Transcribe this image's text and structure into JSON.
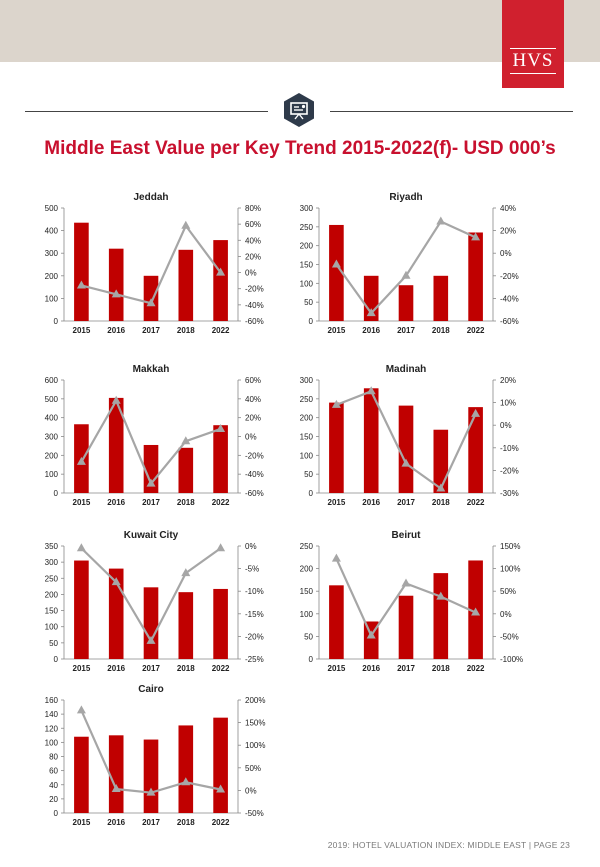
{
  "report": {
    "brand": "HVS",
    "title": "Middle East Value per Key Trend 2015-2022(f)- USD 000’s",
    "footer": "2019: HOTEL VALUATION INDEX: MIDDLE EAST | PAGE 23"
  },
  "colors": {
    "bar": "#c00000",
    "line": "#a6a6a6",
    "title": "#c8102e",
    "accent_band": "#dcd5cc"
  },
  "chart_data": [
    {
      "type": "bar+line",
      "title": "Jeddah",
      "categories": [
        "2015",
        "2016",
        "2017",
        "2018",
        "2022"
      ],
      "bars": [
        435,
        320,
        200,
        315,
        358
      ],
      "line": [
        -16,
        -27,
        -38,
        58,
        0
      ],
      "ylim": [
        0,
        500
      ],
      "yticks": [
        0,
        100,
        200,
        300,
        400,
        500
      ],
      "y2lim": [
        -60,
        80
      ],
      "y2ticks": [
        -60,
        -40,
        -20,
        0,
        20,
        40,
        60,
        80
      ],
      "y2_unit": "%"
    },
    {
      "type": "bar+line",
      "title": "Riyadh",
      "categories": [
        "2015",
        "2016",
        "2017",
        "2018",
        "2022"
      ],
      "bars": [
        255,
        120,
        95,
        120,
        235
      ],
      "line": [
        -10,
        -53,
        -20,
        28,
        14
      ],
      "ylim": [
        0,
        300
      ],
      "yticks": [
        0,
        50,
        100,
        150,
        200,
        250,
        300
      ],
      "y2lim": [
        -60,
        40
      ],
      "y2ticks": [
        -60,
        -40,
        -20,
        0,
        20,
        40
      ],
      "y2_unit": "%"
    },
    {
      "type": "bar+line",
      "title": "Makkah",
      "categories": [
        "2015",
        "2016",
        "2017",
        "2018",
        "2022"
      ],
      "bars": [
        365,
        505,
        255,
        240,
        360
      ],
      "line": [
        -27,
        38,
        -50,
        -5,
        8
      ],
      "ylim": [
        0,
        600
      ],
      "yticks": [
        0,
        100,
        200,
        300,
        400,
        500,
        600
      ],
      "y2lim": [
        -60,
        60
      ],
      "y2ticks": [
        -60,
        -40,
        -20,
        0,
        20,
        40,
        60
      ],
      "y2_unit": "%"
    },
    {
      "type": "bar+line",
      "title": "Madinah",
      "categories": [
        "2015",
        "2016",
        "2017",
        "2018",
        "2022"
      ],
      "bars": [
        240,
        278,
        232,
        168,
        228
      ],
      "line": [
        9,
        15,
        -17,
        -28,
        5
      ],
      "ylim": [
        0,
        300
      ],
      "yticks": [
        0,
        50,
        100,
        150,
        200,
        250,
        300
      ],
      "y2lim": [
        -30,
        20
      ],
      "y2ticks": [
        -30,
        -20,
        -10,
        0,
        10,
        20
      ],
      "y2_unit": "%"
    },
    {
      "type": "bar+line",
      "title": "Kuwait City",
      "categories": [
        "2015",
        "2016",
        "2017",
        "2018",
        "2022"
      ],
      "bars": [
        305,
        280,
        222,
        207,
        217
      ],
      "line": [
        -0.5,
        -8,
        -21,
        -6,
        -0.5
      ],
      "ylim": [
        0,
        350
      ],
      "yticks": [
        0,
        50,
        100,
        150,
        200,
        250,
        300,
        350
      ],
      "y2lim": [
        -25,
        0
      ],
      "y2ticks": [
        -25,
        -20,
        -15,
        -10,
        -5,
        0
      ],
      "y2_unit": "%"
    },
    {
      "type": "bar+line",
      "title": "Beirut",
      "categories": [
        "2015",
        "2016",
        "2017",
        "2018",
        "2022"
      ],
      "bars": [
        163,
        83,
        140,
        190,
        218
      ],
      "line": [
        122,
        -48,
        67,
        38,
        3
      ],
      "ylim": [
        0,
        250
      ],
      "yticks": [
        0,
        50,
        100,
        150,
        200,
        250
      ],
      "y2lim": [
        -100,
        150
      ],
      "y2ticks": [
        -100,
        -50,
        0,
        50,
        100,
        150
      ],
      "y2_unit": "%"
    },
    {
      "type": "bar+line",
      "title": "Cairo",
      "categories": [
        "2015",
        "2016",
        "2017",
        "2018",
        "2022"
      ],
      "bars": [
        108,
        110,
        104,
        124,
        135
      ],
      "line": [
        177,
        3,
        -5,
        18,
        2
      ],
      "ylim": [
        0,
        160
      ],
      "yticks": [
        0,
        20,
        40,
        60,
        80,
        100,
        120,
        140,
        160
      ],
      "y2lim": [
        -50,
        200
      ],
      "y2ticks": [
        -50,
        0,
        50,
        100,
        150,
        200
      ],
      "y2_unit": "%"
    }
  ]
}
